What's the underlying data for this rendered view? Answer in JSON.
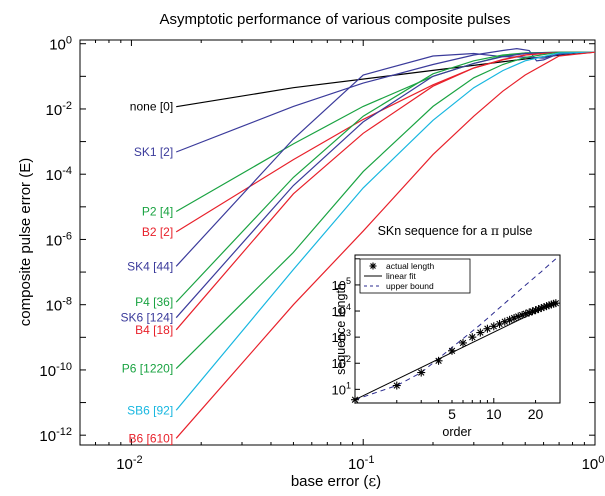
{
  "chart_data": [
    {
      "type": "line",
      "title": "Asymptotic performance of various composite pulses",
      "xlabel_prefix": "base error (",
      "xlabel_symbol": "ε",
      "xlabel_suffix": ")",
      "ylabel": "composite pulse error (E)",
      "x_scale": "log",
      "y_scale": "log",
      "xlim": [
        0.006,
        1
      ],
      "ylim": [
        5e-13,
        1.3
      ],
      "grid": false,
      "xticks": [
        {
          "value": 0.01,
          "base": "10",
          "exp": "-2"
        },
        {
          "value": 0.1,
          "base": "10",
          "exp": "-1"
        },
        {
          "value": 1,
          "base": "10",
          "exp": "0"
        }
      ],
      "yticks": [
        {
          "value": 1e-12,
          "base": "10",
          "exp": "-12"
        },
        {
          "value": 1e-10,
          "base": "10",
          "exp": "-10"
        },
        {
          "value": 1e-08,
          "base": "10",
          "exp": "-8"
        },
        {
          "value": 1e-06,
          "base": "10",
          "exp": "-6"
        },
        {
          "value": 0.0001,
          "base": "10",
          "exp": "-4"
        },
        {
          "value": 0.01,
          "base": "10",
          "exp": "-2"
        },
        {
          "value": 1,
          "base": "10",
          "exp": "0"
        }
      ],
      "series": [
        {
          "name": "none [0]",
          "color": "#000000",
          "x": [
            0.0156,
            0.05,
            0.2,
            0.6,
            1.0
          ],
          "y": [
            0.0117,
            0.045,
            0.152,
            0.4,
            0.55
          ]
        },
        {
          "name": "SK1 [2]",
          "color": "#3b3b9b",
          "x": [
            0.0156,
            0.05,
            0.1,
            0.2,
            0.3,
            0.4,
            0.46,
            0.52,
            0.56,
            0.6,
            0.7,
            0.85,
            1.0
          ],
          "y": [
            0.00048,
            0.012,
            0.062,
            0.23,
            0.45,
            0.62,
            0.71,
            0.62,
            0.3,
            0.32,
            0.5,
            0.55,
            0.55
          ]
        },
        {
          "name": "P2 [4]",
          "color": "#1aa342",
          "x": [
            0.0156,
            0.05,
            0.1,
            0.2,
            0.3,
            0.4,
            0.5,
            0.7,
            1.0
          ],
          "y": [
            7.2e-06,
            0.00085,
            0.012,
            0.1,
            0.25,
            0.42,
            0.52,
            0.55,
            0.55
          ]
        },
        {
          "name": "B2 [2]",
          "color": "#e8212b",
          "x": [
            0.0156,
            0.05,
            0.1,
            0.2,
            0.3,
            0.4,
            0.5,
            0.7,
            1.0
          ],
          "y": [
            1.7e-06,
            0.00028,
            0.0048,
            0.055,
            0.18,
            0.32,
            0.45,
            0.55,
            0.55
          ]
        },
        {
          "name": "SK4 [44]",
          "color": "#3b3b9b",
          "x": [
            0.0156,
            0.05,
            0.1,
            0.2,
            0.3,
            0.4,
            0.5,
            0.6,
            0.7,
            0.85,
            1.0
          ],
          "y": [
            1.5e-07,
            0.0012,
            0.11,
            0.42,
            0.5,
            0.4,
            0.39,
            0.36,
            0.47,
            0.54,
            0.55
          ]
        },
        {
          "name": "P4 [36]",
          "color": "#1aa342",
          "x": [
            0.0156,
            0.05,
            0.1,
            0.2,
            0.3,
            0.4,
            0.5,
            0.7,
            1.0
          ],
          "y": [
            1.2e-08,
            8e-05,
            0.006,
            0.12,
            0.3,
            0.45,
            0.52,
            0.55,
            0.55
          ]
        },
        {
          "name": "SK6 [124]",
          "color": "#3b3b9b",
          "x": [
            0.0156,
            0.05,
            0.1,
            0.2,
            0.3,
            0.4,
            0.5,
            0.7,
            1.0
          ],
          "y": [
            4e-09,
            4.5e-05,
            0.004,
            0.1,
            0.25,
            0.4,
            0.5,
            0.55,
            0.55
          ]
        },
        {
          "name": "B4 [18]",
          "color": "#e8212b",
          "x": [
            0.0156,
            0.05,
            0.1,
            0.2,
            0.3,
            0.4,
            0.5,
            0.7,
            1.0
          ],
          "y": [
            1.7e-09,
            2.5e-05,
            0.0018,
            0.05,
            0.18,
            0.33,
            0.45,
            0.55,
            0.55
          ]
        },
        {
          "name": "P6 [1220]",
          "color": "#1aa342",
          "x": [
            0.0156,
            0.05,
            0.1,
            0.2,
            0.3,
            0.4,
            0.5,
            0.7,
            1.0
          ],
          "y": [
            1.1e-10,
            4e-07,
            0.00012,
            0.012,
            0.09,
            0.23,
            0.38,
            0.55,
            0.55
          ]
        },
        {
          "name": "SB6 [92]",
          "color": "#18b7e0",
          "x": [
            0.0156,
            0.05,
            0.1,
            0.2,
            0.3,
            0.4,
            0.5,
            0.7,
            1.0
          ],
          "y": [
            5.8e-12,
            1.2e-07,
            3.8e-05,
            0.0045,
            0.045,
            0.15,
            0.3,
            0.52,
            0.55
          ]
        },
        {
          "name": "B6 [610]",
          "color": "#e8212b",
          "x": [
            0.0156,
            0.05,
            0.1,
            0.2,
            0.3,
            0.4,
            0.5,
            0.7,
            1.0
          ],
          "y": [
            8e-13,
            1e-08,
            1.8e-06,
            0.0004,
            0.006,
            0.035,
            0.11,
            0.42,
            0.55
          ]
        }
      ]
    },
    {
      "type": "scatter",
      "title_prefix": "SKn sequence for a ",
      "title_symbol": "π",
      "title_suffix": " pulse",
      "xlabel": "order",
      "ylabel": "sequence length",
      "x_scale": "log",
      "y_scale": "log",
      "xlim": [
        1,
        30
      ],
      "ylim": [
        3,
        1400000.0
      ],
      "xticks": [
        {
          "value": 5,
          "label": "5"
        },
        {
          "value": 10,
          "label": "10"
        },
        {
          "value": 20,
          "label": "20"
        }
      ],
      "yticks": [
        {
          "value": 10,
          "base": "10",
          "exp": "1"
        },
        {
          "value": 100,
          "base": "10",
          "exp": "2"
        },
        {
          "value": 1000,
          "base": "10",
          "exp": "3"
        },
        {
          "value": 10000,
          "base": "10",
          "exp": "4"
        },
        {
          "value": 100000,
          "base": "10",
          "exp": "5"
        }
      ],
      "legend": {
        "position": "top-left",
        "items": [
          {
            "label": "actual length",
            "style": "star"
          },
          {
            "label": "linear fit",
            "style": "solid"
          },
          {
            "label": "upper bound",
            "style": "dashed"
          }
        ]
      },
      "actual_length": {
        "x": [
          1,
          2,
          3,
          4,
          5,
          6,
          7,
          8,
          9,
          10,
          11,
          12,
          13,
          14,
          15,
          16,
          17,
          18,
          19,
          20,
          21,
          22,
          23,
          24,
          25,
          26,
          27,
          28
        ],
        "y": [
          4,
          14,
          44,
          124,
          300,
          600,
          1000,
          1500,
          2100,
          2600,
          3200,
          3900,
          4600,
          5400,
          6200,
          7000,
          7900,
          8800,
          9800,
          10800,
          11900,
          13000,
          14200,
          15400,
          16600,
          17800,
          19000,
          20000
        ]
      },
      "linear_fit": {
        "x": [
          1,
          28
        ],
        "y": [
          4,
          22000
        ]
      },
      "upper_bound": {
        "x": [
          1,
          2,
          3,
          5,
          8,
          12,
          17,
          22,
          28
        ],
        "y": [
          4,
          14,
          44,
          400,
          3000,
          20000,
          100000,
          320000,
          1000000
        ]
      }
    }
  ]
}
